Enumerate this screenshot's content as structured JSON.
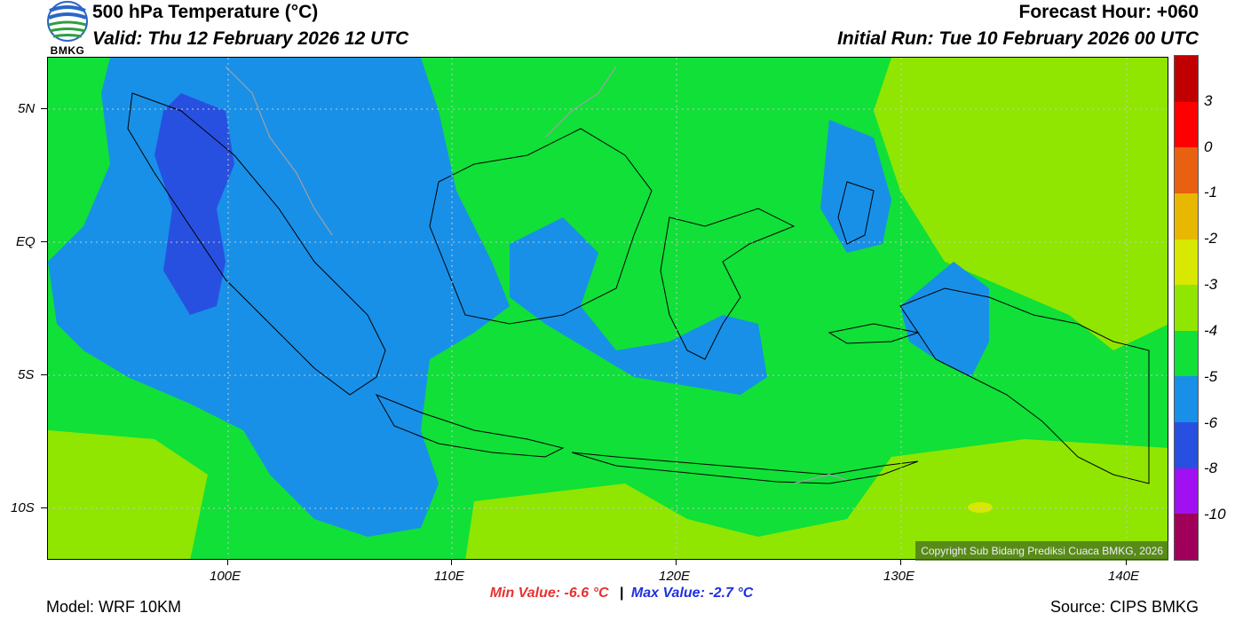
{
  "header": {
    "title": "500 hPa Temperature (°C)",
    "valid": "Valid: Thu 12 February 2026 12 UTC",
    "forecast_hour": "Forecast Hour: +060",
    "initial_run": "Initial Run: Tue 10 February 2026 00 UTC"
  },
  "logo": {
    "text": "BMKG"
  },
  "map": {
    "lat_labels": [
      "5N",
      "EQ",
      "5S",
      "10S"
    ],
    "lon_labels": [
      "100E",
      "110E",
      "120E",
      "130E",
      "140E"
    ],
    "copyright": "Copyright Sub Bidang Prediksi Cuaca BMKG, 2026"
  },
  "colorbar": {
    "labels": [
      "3",
      "0",
      "-1",
      "-2",
      "-3",
      "-4",
      "-5",
      "-6",
      "-8",
      "-10"
    ],
    "colors": [
      "#c00000",
      "#ff0000",
      "#e86010",
      "#e8b800",
      "#d8e800",
      "#90e600",
      "#10e038",
      "#1890e8",
      "#2850e0",
      "#a010f0",
      "#a0005a"
    ]
  },
  "stats": {
    "min_value": "Min Value: -6.6 °C",
    "separator": "|",
    "max_value": "Max Value: -2.7 °C",
    "min_color": "#e83030",
    "max_color": "#2030e0"
  },
  "footer": {
    "model": "Model: WRF 10KM",
    "source": "Source: CIPS BMKG"
  }
}
